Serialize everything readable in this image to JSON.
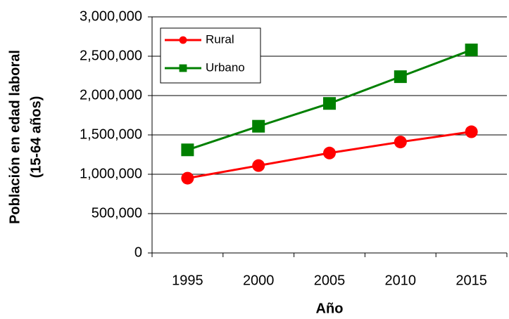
{
  "chart_data": {
    "type": "line",
    "x_label": "Año",
    "y_label": [
      "Población en edad laboral",
      "(15-64 años)"
    ],
    "categories": [
      "1995",
      "2000",
      "2005",
      "2010",
      "2015"
    ],
    "series": [
      {
        "name": "Rural",
        "color": "#ff0000",
        "marker": "circle",
        "values": [
          950000,
          1110000,
          1270000,
          1410000,
          1540000
        ]
      },
      {
        "name": "Urbano",
        "color": "#008000",
        "marker": "square",
        "values": [
          1310000,
          1610000,
          1900000,
          2240000,
          2580000
        ]
      }
    ],
    "ylim": [
      0,
      3000000
    ],
    "yticks": [
      0,
      {
        "value": 500000,
        "label": "500,000"
      },
      {
        "value": 1000000,
        "label": "1,000,000"
      },
      {
        "value": 1500000,
        "label": "1,500,000"
      },
      {
        "value": 2000000,
        "label": "2,000,000"
      },
      {
        "value": 2500000,
        "label": "2,500,000"
      },
      {
        "value": 3000000,
        "label": "3,000,000"
      }
    ],
    "grid": true,
    "legend": "top-left"
  }
}
